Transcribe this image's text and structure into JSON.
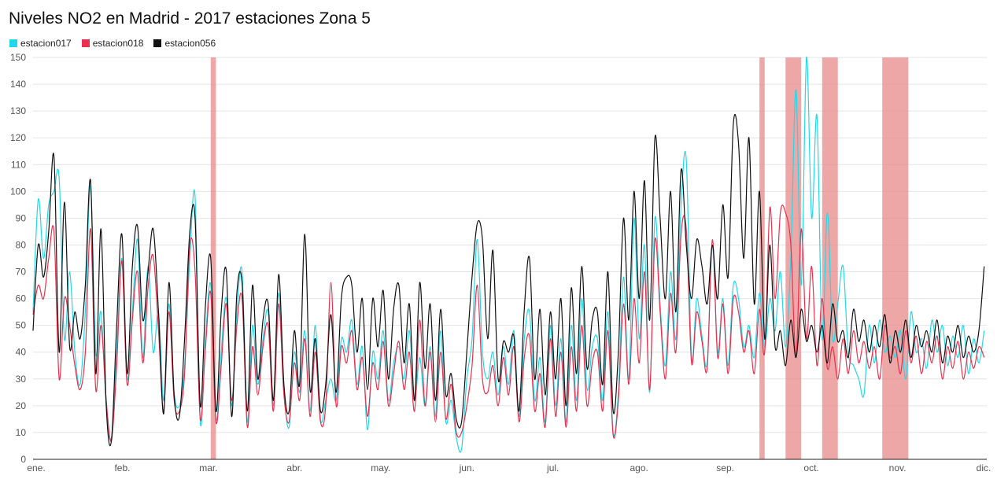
{
  "chart_data": {
    "type": "line",
    "title": "Niveles NO2 en Madrid - 2017 estaciones Zona 5",
    "legend_position": "top-left",
    "grid": true,
    "xlabel": "",
    "ylabel": "",
    "ylim": [
      0,
      150
    ],
    "yticks": [
      0,
      10,
      20,
      30,
      40,
      50,
      60,
      70,
      80,
      90,
      100,
      110,
      120,
      130,
      140,
      150
    ],
    "month_labels": [
      "ene.",
      "feb.",
      "mar.",
      "abr.",
      "may.",
      "jun.",
      "jul.",
      "ago.",
      "sep.",
      "oct.",
      "nov.",
      "dic."
    ],
    "highlight_color": "#e88a8a",
    "highlights_days": [
      [
        68,
        70
      ],
      [
        278,
        280
      ],
      [
        288,
        294
      ],
      [
        302,
        308
      ],
      [
        325,
        335
      ]
    ],
    "series": [
      {
        "name": "estacion017",
        "color": "#22d8e8",
        "x": [
          0,
          2,
          4,
          6,
          8,
          10,
          12,
          14,
          16,
          18,
          20,
          22,
          24,
          26,
          28,
          30,
          32,
          34,
          36,
          38,
          40,
          42,
          44,
          46,
          48,
          50,
          52,
          54,
          56,
          58,
          60,
          62,
          64,
          66,
          68,
          70,
          72,
          74,
          76,
          78,
          80,
          82,
          84,
          86,
          88,
          90,
          92,
          94,
          96,
          98,
          100,
          102,
          104,
          106,
          108,
          110,
          112,
          114,
          116,
          118,
          120,
          122,
          124,
          126,
          128,
          130,
          132,
          134,
          136,
          138,
          140,
          142,
          144,
          146,
          148,
          150,
          152,
          154,
          156,
          158,
          160,
          162,
          164,
          166,
          168,
          170,
          172,
          174,
          176,
          178,
          180,
          182,
          184,
          186,
          188,
          190,
          192,
          194,
          196,
          198,
          200,
          202,
          204,
          206,
          208,
          210,
          212,
          214,
          216,
          218,
          220,
          222,
          224,
          226,
          228,
          230,
          232,
          234,
          236,
          238,
          240,
          242,
          244,
          246,
          248,
          250,
          252,
          254,
          256,
          258,
          260,
          262,
          264,
          266,
          268,
          270,
          272,
          274,
          276,
          278,
          280,
          282,
          284,
          286,
          288,
          290,
          292,
          294,
          296,
          298,
          300,
          302,
          304,
          306,
          308,
          310,
          312,
          314,
          316,
          318,
          320,
          322,
          324,
          326,
          328,
          330,
          332,
          334,
          336,
          338,
          340,
          342,
          344,
          346,
          348,
          350,
          352,
          354,
          356,
          358,
          360,
          362,
          364
        ],
        "y": [
          55,
          97,
          75,
          95,
          100,
          105,
          45,
          70,
          40,
          28,
          55,
          102,
          40,
          55,
          20,
          8,
          40,
          75,
          30,
          55,
          82,
          38,
          72,
          40,
          55,
          22,
          58,
          25,
          20,
          35,
          75,
          98,
          14,
          45,
          65,
          15,
          40,
          60,
          20,
          55,
          70,
          14,
          50,
          28,
          45,
          55,
          20,
          62,
          26,
          12,
          40,
          25,
          48,
          18,
          50,
          15,
          22,
          30,
          22,
          45,
          40,
          52,
          28,
          42,
          11,
          40,
          30,
          48,
          22,
          36,
          42,
          30,
          48,
          22,
          38,
          20,
          42,
          16,
          48,
          14,
          22,
          8,
          4,
          30,
          45,
          82,
          40,
          30,
          40,
          24,
          42,
          28,
          48,
          16,
          45,
          55,
          22,
          38,
          14,
          50,
          20,
          45,
          14,
          50,
          22,
          60,
          26,
          42,
          45,
          22,
          55,
          10,
          25,
          68,
          30,
          90,
          45,
          80,
          25,
          90,
          58,
          35,
          70,
          45,
          95,
          112,
          38,
          60,
          46,
          36,
          80,
          40,
          60,
          35,
          65,
          60,
          42,
          50,
          38,
          62,
          42,
          60,
          48,
          70,
          42,
          75,
          138,
          65,
          150,
          90,
          128,
          45,
          92,
          45,
          58,
          72,
          40,
          35,
          30,
          24,
          50,
          36,
          52,
          40,
          46,
          38,
          48,
          30,
          55,
          40,
          45,
          34,
          52,
          40,
          50,
          35,
          46,
          38,
          50,
          32,
          45,
          36,
          48
        ]
      },
      {
        "name": "estacion018",
        "color": "#e8314e",
        "x": [
          0,
          2,
          4,
          6,
          8,
          10,
          12,
          14,
          16,
          18,
          20,
          22,
          24,
          26,
          28,
          30,
          32,
          34,
          36,
          38,
          40,
          42,
          44,
          46,
          48,
          50,
          52,
          54,
          56,
          58,
          60,
          62,
          64,
          66,
          68,
          70,
          72,
          74,
          76,
          78,
          80,
          82,
          84,
          86,
          88,
          90,
          92,
          94,
          96,
          98,
          100,
          102,
          104,
          106,
          108,
          110,
          112,
          114,
          116,
          118,
          120,
          122,
          124,
          126,
          128,
          130,
          132,
          134,
          136,
          138,
          140,
          142,
          144,
          146,
          148,
          150,
          152,
          154,
          156,
          158,
          160,
          162,
          164,
          166,
          168,
          170,
          172,
          174,
          176,
          178,
          180,
          182,
          184,
          186,
          188,
          190,
          192,
          194,
          196,
          198,
          200,
          202,
          204,
          206,
          208,
          210,
          212,
          214,
          216,
          218,
          220,
          222,
          224,
          226,
          228,
          230,
          232,
          234,
          236,
          238,
          240,
          242,
          244,
          246,
          248,
          250,
          252,
          254,
          256,
          258,
          260,
          262,
          264,
          266,
          268,
          270,
          272,
          274,
          276,
          278,
          280,
          282,
          284,
          286,
          288,
          290,
          292,
          294,
          296,
          298,
          300,
          302,
          304,
          306,
          308,
          310,
          312,
          314,
          316,
          318,
          320,
          322,
          324,
          326,
          328,
          330,
          332,
          334,
          336,
          338,
          340,
          342,
          344,
          346,
          348,
          350,
          352,
          354,
          356,
          358,
          360,
          362,
          364
        ],
        "y": [
          54,
          65,
          60,
          75,
          85,
          30,
          60,
          50,
          35,
          26,
          40,
          86,
          26,
          50,
          22,
          7,
          35,
          74,
          28,
          52,
          70,
          36,
          64,
          76,
          48,
          18,
          55,
          22,
          18,
          32,
          80,
          70,
          15,
          42,
          62,
          14,
          35,
          58,
          22,
          50,
          60,
          12,
          42,
          24,
          42,
          50,
          18,
          58,
          24,
          14,
          36,
          22,
          45,
          16,
          40,
          14,
          20,
          66,
          20,
          42,
          36,
          48,
          26,
          38,
          16,
          36,
          26,
          44,
          20,
          32,
          44,
          26,
          40,
          18,
          52,
          20,
          40,
          14,
          40,
          15,
          28,
          10,
          10,
          20,
          35,
          65,
          30,
          25,
          35,
          20,
          38,
          24,
          42,
          14,
          38,
          46,
          18,
          32,
          12,
          45,
          16,
          40,
          12,
          42,
          18,
          50,
          20,
          36,
          40,
          18,
          48,
          9,
          22,
          58,
          28,
          60,
          36,
          70,
          26,
          82,
          55,
          30,
          62,
          40,
          84,
          86,
          36,
          55,
          44,
          34,
          82,
          38,
          58,
          32,
          60,
          55,
          40,
          48,
          32,
          56,
          40,
          94,
          60,
          92,
          92,
          80,
          38,
          86,
          45,
          72,
          35,
          60,
          34,
          42,
          30,
          45,
          32,
          48,
          36,
          44,
          34,
          42,
          30,
          50,
          38,
          42,
          32,
          48,
          36,
          46,
          32,
          44,
          36,
          46,
          30,
          42,
          34,
          44,
          30,
          40,
          34,
          42,
          38
        ]
      },
      {
        "name": "estacion056",
        "color": "#111111",
        "x": [
          0,
          2,
          4,
          6,
          8,
          10,
          12,
          14,
          16,
          18,
          20,
          22,
          24,
          26,
          28,
          30,
          32,
          34,
          36,
          38,
          40,
          42,
          44,
          46,
          48,
          50,
          52,
          54,
          56,
          58,
          60,
          62,
          64,
          66,
          68,
          70,
          72,
          74,
          76,
          78,
          80,
          82,
          84,
          86,
          88,
          90,
          92,
          94,
          96,
          98,
          100,
          102,
          104,
          106,
          108,
          110,
          112,
          114,
          116,
          118,
          120,
          122,
          124,
          126,
          128,
          130,
          132,
          134,
          136,
          138,
          140,
          142,
          144,
          146,
          148,
          150,
          152,
          154,
          156,
          158,
          160,
          162,
          164,
          166,
          168,
          170,
          172,
          174,
          176,
          178,
          180,
          182,
          184,
          186,
          188,
          190,
          192,
          194,
          196,
          198,
          200,
          202,
          204,
          206,
          208,
          210,
          212,
          214,
          216,
          218,
          220,
          222,
          224,
          226,
          228,
          230,
          232,
          234,
          236,
          238,
          240,
          242,
          244,
          246,
          248,
          250,
          252,
          254,
          256,
          258,
          260,
          262,
          264,
          266,
          268,
          270,
          272,
          274,
          276,
          278,
          280,
          282,
          284,
          286,
          288,
          290,
          292,
          294,
          296,
          298,
          300,
          302,
          304,
          306,
          308,
          310,
          312,
          314,
          316,
          318,
          320,
          322,
          324,
          326,
          328,
          330,
          332,
          334,
          336,
          338,
          340,
          342,
          344,
          346,
          348,
          350,
          352,
          354,
          356,
          358,
          360,
          362,
          364
        ],
        "y": [
          48,
          80,
          68,
          85,
          113,
          40,
          96,
          42,
          55,
          45,
          65,
          104,
          32,
          86,
          20,
          7,
          50,
          84,
          32,
          72,
          87,
          52,
          70,
          86,
          55,
          17,
          66,
          24,
          16,
          45,
          85,
          90,
          20,
          58,
          75,
          18,
          55,
          70,
          16,
          62,
          66,
          18,
          65,
          30,
          52,
          58,
          22,
          69,
          28,
          18,
          48,
          28,
          84,
          26,
          45,
          18,
          28,
          54,
          25,
          60,
          68,
          65,
          40,
          60,
          26,
          60,
          42,
          63,
          30,
          56,
          65,
          36,
          58,
          22,
          66,
          34,
          58,
          22,
          56,
          24,
          32,
          15,
          14,
          40,
          68,
          88,
          82,
          45,
          78,
          30,
          44,
          40,
          46,
          18,
          56,
          75,
          30,
          56,
          24,
          55,
          30,
          60,
          20,
          64,
          32,
          72,
          34,
          52,
          55,
          28,
          70,
          18,
          40,
          90,
          52,
          100,
          60,
          104,
          52,
          120,
          90,
          60,
          100,
          55,
          108,
          80,
          60,
          82,
          72,
          58,
          80,
          60,
          95,
          68,
          125,
          118,
          75,
          120,
          58,
          100,
          45,
          80,
          42,
          48,
          35,
          52,
          38,
          56,
          44,
          50,
          40,
          50,
          36,
          58,
          44,
          48,
          38,
          56,
          44,
          52,
          40,
          50,
          42,
          54,
          36,
          48,
          40,
          52,
          38,
          50,
          42,
          48,
          40,
          52,
          36,
          46,
          40,
          50,
          38,
          46,
          40,
          48,
          72
        ]
      }
    ]
  }
}
